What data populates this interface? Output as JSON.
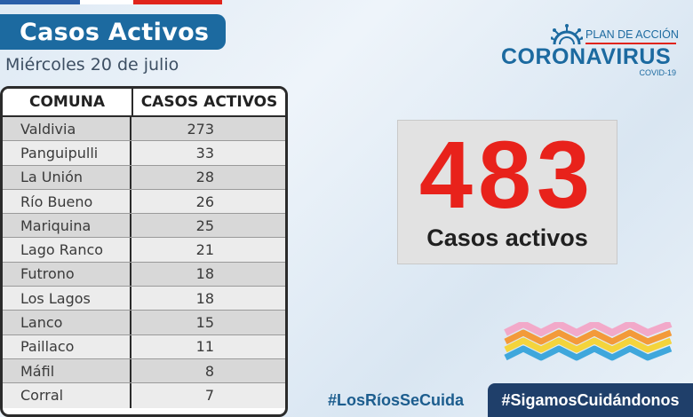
{
  "header": {
    "title": "Casos Activos",
    "date": "Miércoles 20 de julio"
  },
  "table": {
    "headers": [
      "COMUNA",
      "CASOS ACTIVOS"
    ],
    "rows": [
      {
        "comuna": "Valdivia",
        "casos": "273"
      },
      {
        "comuna": "Panguipulli",
        "casos": "33"
      },
      {
        "comuna": "La Unión",
        "casos": "28"
      },
      {
        "comuna": "Río Bueno",
        "casos": "26"
      },
      {
        "comuna": "Mariquina",
        "casos": "25"
      },
      {
        "comuna": "Lago Ranco",
        "casos": "21"
      },
      {
        "comuna": "Futrono",
        "casos": "18"
      },
      {
        "comuna": "Los Lagos",
        "casos": "18"
      },
      {
        "comuna": "Lanco",
        "casos": "15"
      },
      {
        "comuna": "Paillaco",
        "casos": "11"
      },
      {
        "comuna": "Máfil",
        "casos": "8"
      },
      {
        "comuna": "Corral",
        "casos": "7"
      }
    ]
  },
  "total": {
    "value": "483",
    "label": "Casos activos"
  },
  "logo": {
    "plan": "PLAN DE ACCIÓN",
    "main": "CORONAVIRUS",
    "sub": "COVID-19"
  },
  "footer": {
    "hashtag_left": "#LosRíosSeCuida",
    "hashtag_right": "#SigamosCuidándonos"
  },
  "colors": {
    "brand_blue": "#1c6aa0",
    "accent_red": "#e8221b",
    "footer_navy": "#1f3f6a"
  }
}
